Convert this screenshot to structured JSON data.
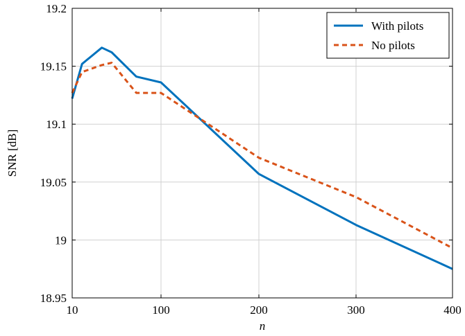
{
  "chart_data": {
    "type": "line",
    "xlabel": "n",
    "ylabel": "SNR [dB]",
    "x_ticks": [
      "10",
      "100",
      "200",
      "300",
      "400"
    ],
    "y_ticks": [
      "18.95",
      "19",
      "19.05",
      "19.1",
      "19.15",
      "19.2"
    ],
    "ylim": [
      18.95,
      19.2
    ],
    "grid": true,
    "legend_position": "top-right",
    "series": [
      {
        "name": "With pilots",
        "color": "#0072BD",
        "style": "solid",
        "points": [
          [
            10,
            19.122
          ],
          [
            20,
            19.152
          ],
          [
            40,
            19.166
          ],
          [
            50,
            19.162
          ],
          [
            75,
            19.141
          ],
          [
            100,
            19.136
          ],
          [
            200,
            19.057
          ],
          [
            300,
            19.013
          ],
          [
            400,
            18.975
          ]
        ]
      },
      {
        "name": "No pilots",
        "color": "#D95319",
        "style": "dashed",
        "points": [
          [
            10,
            19.127
          ],
          [
            20,
            19.145
          ],
          [
            40,
            19.151
          ],
          [
            50,
            19.153
          ],
          [
            75,
            19.127
          ],
          [
            100,
            19.127
          ],
          [
            200,
            19.071
          ],
          [
            300,
            19.037
          ],
          [
            400,
            18.993
          ]
        ]
      }
    ]
  }
}
